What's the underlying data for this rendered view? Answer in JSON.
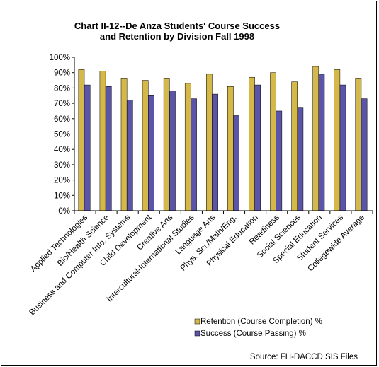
{
  "chart_data": {
    "type": "bar",
    "title": "Chart II-12--De Anza Students' Course Success",
    "title_line2": "and Retention by Division Fall 1998",
    "categories": [
      "Applied Technologies",
      "Bio/Health Science",
      "Business and Computer Info. Systems",
      "Child Development",
      "Creative Arts",
      "Intercultural-International Studies",
      "Language Arts",
      "Phys. Sci./Math/Eng.",
      "Physical Education",
      "Readiness",
      "Social Sciences",
      "Special Education",
      "Student Services",
      "Collegewide Average"
    ],
    "series": [
      {
        "name": "Retention (Course Completion) %",
        "color": "#d4b84a",
        "values": [
          92,
          91,
          86,
          85,
          86,
          83,
          89,
          81,
          87,
          90,
          84,
          94,
          92,
          86
        ]
      },
      {
        "name": "Success (Course Passing) %",
        "color": "#5a55a8",
        "values": [
          82,
          81,
          72,
          75,
          78,
          73,
          76,
          62,
          82,
          65,
          67,
          89,
          82,
          73
        ]
      }
    ],
    "y_ticks": [
      "0%",
      "10%",
      "20%",
      "30%",
      "40%",
      "50%",
      "60%",
      "70%",
      "80%",
      "90%",
      "100%"
    ],
    "ylim": [
      0,
      100
    ],
    "grid": false,
    "legend_position": "bottom-center",
    "source": "Source: FH-DACCD SIS Files"
  }
}
